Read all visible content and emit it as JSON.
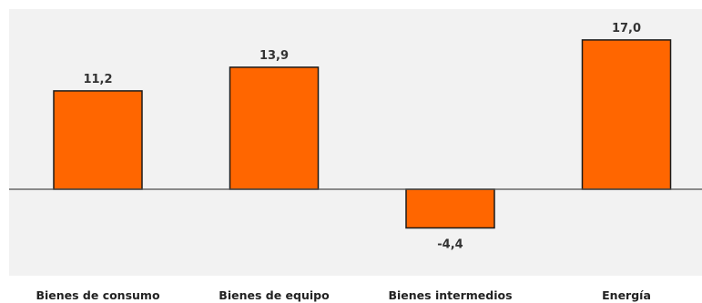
{
  "colors": {
    "plot_background": "#f2f2f2",
    "bar_fill": "#ff6600",
    "bar_stroke": "#1a1a1a",
    "zero_line": "#4d4d4d"
  },
  "chart_data": {
    "type": "bar",
    "categories": [
      "Bienes de consumo",
      "Bienes de equipo",
      "Bienes intermedios",
      "Energía"
    ],
    "values": [
      11.2,
      13.9,
      -4.4,
      17.0
    ],
    "value_labels": [
      "11,2",
      "13,9",
      "-4,4",
      "17,0"
    ],
    "ylim": [
      -8,
      19
    ],
    "grid": false,
    "legend": "none"
  }
}
